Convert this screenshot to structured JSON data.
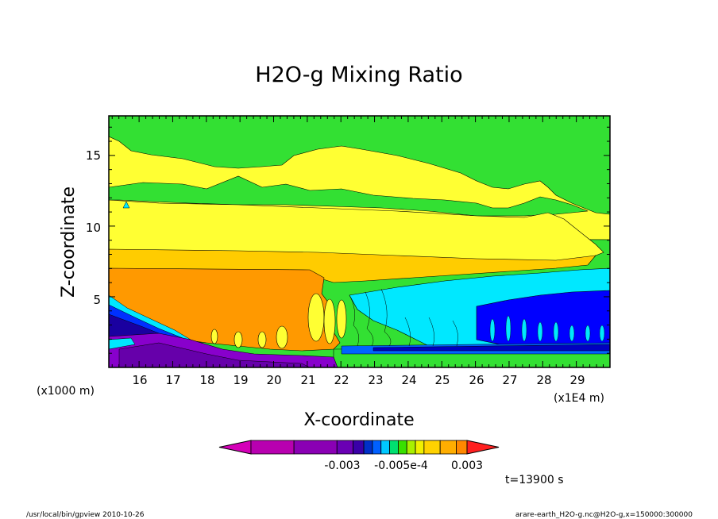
{
  "chart_data": {
    "type": "heatmap",
    "title": "H2O-g Mixing Ratio",
    "xlabel": "X-coordinate",
    "ylabel": "Z-coordinate",
    "y_unit_label": "(x1000 m)",
    "x_unit_label": "(x1E4 m)",
    "xlim": [
      15.1,
      30.0
    ],
    "ylim": [
      0.0,
      17.8
    ],
    "x_ticks": [
      "16",
      "17",
      "18",
      "19",
      "20",
      "21",
      "22",
      "23",
      "24",
      "25",
      "26",
      "27",
      "28",
      "29"
    ],
    "y_ticks": [
      "5",
      "10",
      "15"
    ],
    "grid": false,
    "colorbar": {
      "colors": [
        "#d400b8",
        "#b800b0",
        "#8a00b4",
        "#6a00b4",
        "#3a00a8",
        "#0030c8",
        "#0060ff",
        "#00c8ff",
        "#00e070",
        "#38e000",
        "#a8f000",
        "#f0f000",
        "#ffd200",
        "#ffae00",
        "#ff8800",
        "#ff2020"
      ],
      "labels": [
        "-0.003",
        "-0.005e-4",
        "0.003"
      ]
    },
    "layers": [
      {
        "band": "green",
        "color": "#33e033",
        "z_range": [
          12.5,
          17.8
        ]
      },
      {
        "band": "yellow",
        "color": "#ffff33",
        "z_range": [
          8.3,
          12.5
        ]
      },
      {
        "band": "amber",
        "color": "#ffcc00",
        "z_range": [
          7.0,
          8.3
        ]
      },
      {
        "band": "orange",
        "color": "#ff9900",
        "z_range": [
          2.0,
          7.0
        ],
        "x_range": [
          15.1,
          21.8
        ]
      },
      {
        "band": "cyan",
        "color": "#00e8ff",
        "z_range": [
          3.5,
          7.0
        ],
        "x_range": [
          23.5,
          30.0
        ]
      },
      {
        "band": "blue",
        "color": "#0000ff",
        "z_range": [
          1.0,
          5.0
        ],
        "x_range": [
          26.0,
          30.0
        ]
      },
      {
        "band": "purple",
        "color": "#8800cc",
        "z_range": [
          0.0,
          2.0
        ],
        "x_range": [
          15.1,
          21.0
        ]
      }
    ],
    "time_label": "t=13900 s"
  },
  "footer": {
    "left": "/usr/local/bin/gpview  2010-10-26",
    "right": "arare-earth_H2O-g.nc@H2O-g,x=150000:300000"
  }
}
